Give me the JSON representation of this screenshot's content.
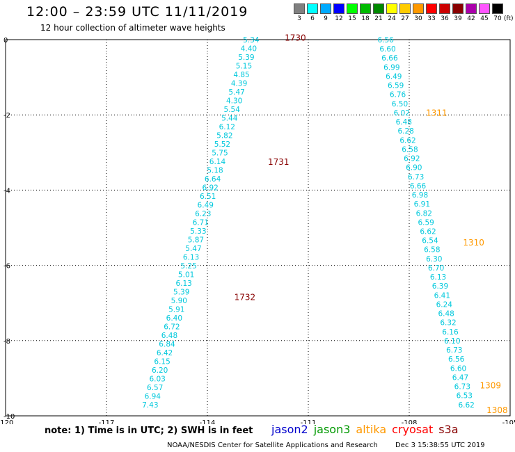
{
  "title": "12:00 – 23:59 UTC 11/11/2019",
  "subtitle": "12 hour collection of altimeter wave heights",
  "legend": {
    "unit": "(ft)",
    "items": [
      {
        "label": "3",
        "color": "#808080"
      },
      {
        "label": "6",
        "color": "#00ffff"
      },
      {
        "label": "9",
        "color": "#00aaff"
      },
      {
        "label": "12",
        "color": "#0000ff"
      },
      {
        "label": "15",
        "color": "#00ff00"
      },
      {
        "label": "18",
        "color": "#00bb00"
      },
      {
        "label": "21",
        "color": "#008800"
      },
      {
        "label": "24",
        "color": "#ffff00"
      },
      {
        "label": "27",
        "color": "#ffcc00"
      },
      {
        "label": "30",
        "color": "#ff9900"
      },
      {
        "label": "33",
        "color": "#ff0000"
      },
      {
        "label": "36",
        "color": "#cc0000"
      },
      {
        "label": "39",
        "color": "#880000"
      },
      {
        "label": "42",
        "color": "#aa00aa"
      },
      {
        "label": "45",
        "color": "#ff55ff"
      },
      {
        "label": "70",
        "color": "#000000"
      }
    ]
  },
  "map": {
    "lon_range": [
      -120,
      -105
    ],
    "lat_range": [
      -10,
      0
    ],
    "x_ticks": [
      "-120",
      "-117",
      "-114",
      "-111",
      "-108",
      "-105"
    ],
    "y_ticks": [
      "0",
      "-2",
      "-4",
      "-6",
      "-8",
      "-10"
    ],
    "grid": "dotted"
  },
  "tracks": [
    {
      "name": "cryosat-descending",
      "color": "#00c8dc",
      "start": [
        -112.7,
        0.0
      ],
      "end": [
        -115.7,
        -9.7
      ],
      "values": [
        "5.34",
        "4.40",
        "5.39",
        "5.15",
        "4.85",
        "4.39",
        "5.47",
        "4.30",
        "5.54",
        "5.44",
        "6.12",
        "5.82",
        "5.52",
        "5.75",
        "6.14",
        "5.18",
        "6.64",
        "6.92",
        "6.51",
        "6.49",
        "6.23",
        "6.71",
        "5.33",
        "5.87",
        "5.47",
        "6.13",
        "5.25",
        "5.01",
        "6.13",
        "5.39",
        "5.90",
        "5.91",
        "6.40",
        "6.72",
        "6.48",
        "6.84",
        "6.42",
        "6.15",
        "6.20",
        "6.03",
        "6.57",
        "6.94",
        "7.43"
      ]
    },
    {
      "name": "cryosat-ascending",
      "color": "#00c8dc",
      "start": [
        -108.7,
        0.0
      ],
      "end": [
        -106.3,
        -9.7
      ],
      "values": [
        "6.56",
        "6.60",
        "6.66",
        "6.99",
        "6.49",
        "6.59",
        "6.76",
        "6.50",
        "6.02",
        "6.48",
        "6.28",
        "6.62",
        "6.58",
        "6.92",
        "6.90",
        "6.73",
        "6.66",
        "6.98",
        "6.91",
        "6.82",
        "6.59",
        "6.62",
        "6.54",
        "6.58",
        "6.30",
        "6.70",
        "6.13",
        "6.39",
        "6.41",
        "6.24",
        "6.48",
        "6.32",
        "6.16",
        "6.10",
        "6.73",
        "6.56",
        "6.60",
        "6.47",
        "6.73",
        "6.53",
        "6.62"
      ]
    }
  ],
  "time_labels": [
    {
      "text": "1730",
      "lon": -111.7,
      "lat": 0.05,
      "color": "#880000"
    },
    {
      "text": "1731",
      "lon": -112.2,
      "lat": -3.25,
      "color": "#880000"
    },
    {
      "text": "1732",
      "lon": -113.2,
      "lat": -6.85,
      "color": "#880000"
    },
    {
      "text": "1311",
      "lon": -107.5,
      "lat": -1.95,
      "color": "#ff9900"
    },
    {
      "text": "1310",
      "lon": -106.4,
      "lat": -5.4,
      "color": "#ff9900"
    },
    {
      "text": "1309",
      "lon": -105.9,
      "lat": -9.2,
      "color": "#ff9900"
    },
    {
      "text": "1308",
      "lon": -105.7,
      "lat": -9.85,
      "color": "#ff9900"
    }
  ],
  "note": "note: 1) Time is in UTC; 2) SWH is in feet",
  "satellites": [
    {
      "name": "jason2",
      "color": "#0000cc"
    },
    {
      "name": "jason3",
      "color": "#009900"
    },
    {
      "name": "altika",
      "color": "#ff9900"
    },
    {
      "name": "cryosat",
      "color": "#ff0000"
    },
    {
      "name": "s3a",
      "color": "#880000"
    }
  ],
  "footer": {
    "org": "NOAA/NESDIS Center for Satellite Applications and Research",
    "timestamp": "Dec  3 15:38:55 UTC 2019"
  }
}
